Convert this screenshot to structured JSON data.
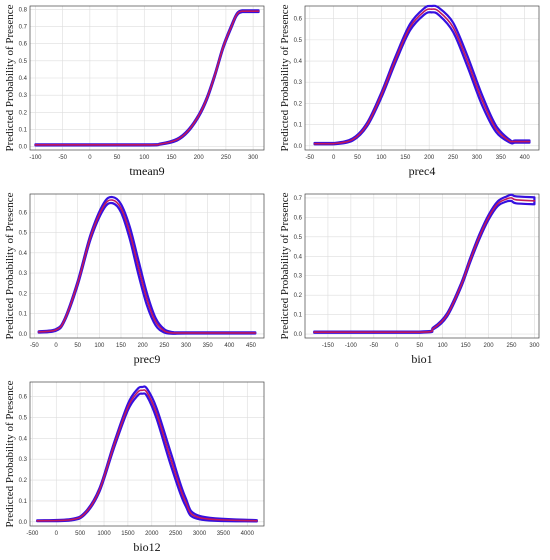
{
  "colors": {
    "mean_curve": "#c2185b",
    "band": "#3510e0",
    "grid": "#dddddd"
  },
  "chart_data": [
    {
      "type": "line",
      "xlabel": "tmean9",
      "ylabel": "Predicted Probability of Presence",
      "xlim": [
        -110,
        320
      ],
      "ylim": [
        -0.02,
        0.82
      ],
      "xticks": [
        -100,
        -50,
        0,
        50,
        100,
        150,
        200,
        250,
        300
      ],
      "yticks": [
        0,
        0.1,
        0.2,
        0.3,
        0.4,
        0.5,
        0.6,
        0.7,
        0.8
      ],
      "ytick_decimals": 1,
      "grid": true,
      "series": [
        {
          "x": [
            -100,
            100,
            130,
            160,
            180,
            200,
            215,
            230,
            245,
            260,
            270,
            280,
            300,
            310
          ],
          "y": [
            0.01,
            0.01,
            0.015,
            0.04,
            0.09,
            0.18,
            0.28,
            0.42,
            0.58,
            0.7,
            0.77,
            0.79,
            0.79,
            0.79
          ],
          "band": [
            0.003,
            0.003,
            0.003,
            0.005,
            0.006,
            0.007,
            0.008,
            0.008,
            0.008,
            0.008,
            0.006,
            0.005,
            0.005,
            0.005
          ]
        }
      ]
    },
    {
      "type": "line",
      "xlabel": "prec4",
      "ylabel": "Predicted Probability of Presence",
      "xlim": [
        -60,
        430
      ],
      "ylim": [
        -0.02,
        0.66
      ],
      "xticks": [
        -50,
        0,
        50,
        100,
        150,
        200,
        250,
        300,
        350,
        400
      ],
      "yticks": [
        0,
        0.1,
        0.2,
        0.3,
        0.4,
        0.5,
        0.6
      ],
      "ytick_decimals": 1,
      "grid": true,
      "series": [
        {
          "x": [
            -40,
            0,
            40,
            70,
            100,
            130,
            160,
            190,
            205,
            220,
            250,
            280,
            310,
            340,
            370,
            380,
            410
          ],
          "y": [
            0.01,
            0.01,
            0.03,
            0.1,
            0.24,
            0.41,
            0.56,
            0.635,
            0.645,
            0.635,
            0.56,
            0.4,
            0.22,
            0.08,
            0.02,
            0.02,
            0.02
          ],
          "band": [
            0.003,
            0.003,
            0.005,
            0.008,
            0.012,
            0.014,
            0.015,
            0.015,
            0.015,
            0.017,
            0.022,
            0.025,
            0.024,
            0.015,
            0.006,
            0.005,
            0.005
          ]
        }
      ]
    },
    {
      "type": "line",
      "xlabel": "prec9",
      "ylabel": "Predicted Probability of Presence",
      "xlim": [
        -60,
        480
      ],
      "ylim": [
        -0.02,
        0.69
      ],
      "xticks": [
        -50,
        0,
        50,
        100,
        150,
        200,
        250,
        300,
        350,
        400,
        450
      ],
      "yticks": [
        0,
        0.1,
        0.2,
        0.3,
        0.4,
        0.5,
        0.6
      ],
      "ytick_decimals": 1,
      "grid": true,
      "series": [
        {
          "x": [
            -40,
            0,
            20,
            50,
            80,
            110,
            130,
            150,
            170,
            190,
            210,
            230,
            250,
            270,
            300,
            460
          ],
          "y": [
            0.01,
            0.02,
            0.07,
            0.25,
            0.48,
            0.63,
            0.66,
            0.62,
            0.5,
            0.33,
            0.17,
            0.06,
            0.015,
            0.005,
            0.005,
            0.005
          ],
          "band": [
            0.003,
            0.004,
            0.006,
            0.01,
            0.012,
            0.014,
            0.015,
            0.02,
            0.03,
            0.035,
            0.03,
            0.018,
            0.008,
            0.004,
            0.003,
            0.003
          ]
        }
      ]
    },
    {
      "type": "line",
      "xlabel": "bio1",
      "ylabel": "Predicted Probability of Presence",
      "xlim": [
        -200,
        310
      ],
      "ylim": [
        -0.02,
        0.72
      ],
      "xticks": [
        -150,
        -100,
        -50,
        0,
        50,
        100,
        150,
        200,
        250,
        300
      ],
      "yticks": [
        0,
        0.1,
        0.2,
        0.3,
        0.4,
        0.5,
        0.6,
        0.7
      ],
      "ytick_decimals": 1,
      "grid": true,
      "series": [
        {
          "x": [
            -180,
            50,
            80,
            110,
            140,
            160,
            180,
            200,
            220,
            240,
            250,
            260,
            300
          ],
          "y": [
            0.01,
            0.01,
            0.03,
            0.1,
            0.25,
            0.38,
            0.5,
            0.6,
            0.67,
            0.695,
            0.7,
            0.69,
            0.685
          ],
          "band": [
            0.003,
            0.003,
            0.005,
            0.008,
            0.01,
            0.011,
            0.012,
            0.012,
            0.012,
            0.013,
            0.016,
            0.018,
            0.018
          ]
        }
      ]
    },
    {
      "type": "line",
      "xlabel": "bio12",
      "ylabel": "Predicted Probability of Presence",
      "xlim": [
        -550,
        4350
      ],
      "ylim": [
        -0.02,
        0.67
      ],
      "xticks": [
        -500,
        0,
        500,
        1000,
        1500,
        2000,
        2500,
        3000,
        3500,
        4000
      ],
      "yticks": [
        0,
        0.1,
        0.2,
        0.3,
        0.4,
        0.5,
        0.6
      ],
      "ytick_decimals": 1,
      "grid": true,
      "series": [
        {
          "x": [
            -400,
            300,
            600,
            900,
            1200,
            1500,
            1700,
            1800,
            1900,
            2100,
            2400,
            2700,
            3000,
            4200
          ],
          "y": [
            0.005,
            0.01,
            0.04,
            0.15,
            0.36,
            0.55,
            0.62,
            0.63,
            0.62,
            0.52,
            0.3,
            0.1,
            0.02,
            0.005
          ],
          "band": [
            0.002,
            0.003,
            0.005,
            0.008,
            0.012,
            0.015,
            0.016,
            0.016,
            0.018,
            0.025,
            0.03,
            0.02,
            0.008,
            0.003
          ]
        }
      ]
    }
  ]
}
